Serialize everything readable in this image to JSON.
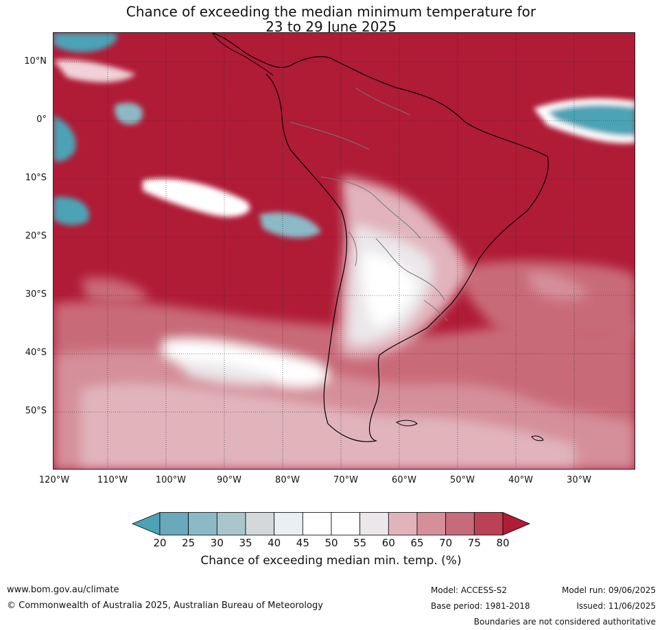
{
  "title": {
    "line1": "Chance of exceeding the median minimum temperature for",
    "line2": "23 to 29 June 2025"
  },
  "axes": {
    "lat_labels": [
      "10°N",
      "0°",
      "10°S",
      "20°S",
      "30°S",
      "40°S",
      "50°S"
    ],
    "lon_labels": [
      "120°W",
      "110°W",
      "100°W",
      "90°W",
      "80°W",
      "70°W",
      "60°W",
      "50°W",
      "40°W",
      "30°W"
    ]
  },
  "colorbar": {
    "ticks": [
      "20",
      "25",
      "30",
      "35",
      "40",
      "45",
      "50",
      "55",
      "60",
      "65",
      "70",
      "75",
      "80"
    ],
    "colors": [
      "#4ca3b5",
      "#6aa9b9",
      "#8bbac6",
      "#aac6cc",
      "#d4d8da",
      "#e9eff2",
      "#ffffff",
      "#ffffff",
      "#ebe7ea",
      "#e1b4bc",
      "#d58f9a",
      "#c66b79",
      "#bb4254",
      "#b01b36"
    ],
    "label": "Chance of exceeding median min. temp. (%)"
  },
  "footer": {
    "url": "www.bom.gov.au/climate",
    "copyright": "© Commonwealth of Australia 2025, Australian Bureau of Meteorology",
    "model": "Model: ACCESS-S2",
    "base_period": "Base period: 1981-2018",
    "model_run": "Model run: 09/06/2025",
    "issued": "Issued: 11/06/2025",
    "disclaimer": "Boundaries are not considered authoritative"
  }
}
